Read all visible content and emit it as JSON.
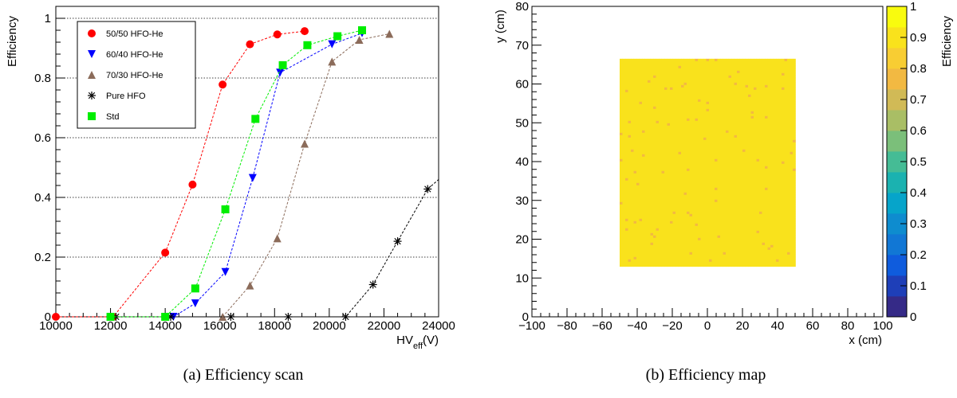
{
  "chart_data": [
    {
      "type": "scatter",
      "title": "",
      "xlabel": "HV",
      "xlabel_sub": "eff",
      "xlabel_unit": "(V)",
      "ylabel": "Efficiency",
      "xlim": [
        10000,
        24000
      ],
      "ylim": [
        0,
        1.05
      ],
      "x_ticks": [
        10000,
        12000,
        14000,
        16000,
        18000,
        20000,
        22000,
        24000
      ],
      "y_ticks": [
        0,
        0.2,
        0.4,
        0.6,
        0.8,
        1
      ],
      "y_tick_labels": [
        "0",
        "0.2",
        "0.4",
        "0.6",
        "0.8",
        "1"
      ],
      "grid": "horizontal dotted",
      "legend_position": "top-left",
      "series": [
        {
          "name": "50/50 HFO-He",
          "color": "#ff0000",
          "marker": "circle",
          "x": [
            10000,
            12100,
            14000,
            15000,
            16100,
            17100,
            18100,
            19100
          ],
          "y": [
            0.0,
            0.0,
            0.215,
            0.443,
            0.778,
            0.913,
            0.946,
            0.957
          ]
        },
        {
          "name": "60/40 HFO-He",
          "color": "#0000ff",
          "marker": "triangle-down",
          "x": [
            14300,
            15100,
            16200,
            17200,
            18200,
            20100,
            21200
          ],
          "y": [
            0.0,
            0.045,
            0.15,
            0.465,
            0.818,
            0.913,
            0.95
          ]
        },
        {
          "name": "70/30 HFO-He",
          "color": "#8b6b5a",
          "marker": "triangle-up",
          "x": [
            16100,
            17100,
            18100,
            19100,
            20100,
            21100,
            22200
          ],
          "y": [
            0.0,
            0.105,
            0.263,
            0.58,
            0.855,
            0.928,
            0.948
          ]
        },
        {
          "name": "Pure HFO",
          "color": "#000000",
          "marker": "asterisk",
          "x": [
            12200,
            14200,
            16400,
            18500,
            20600,
            21600,
            22500,
            23600,
            24000
          ],
          "y": [
            0.0,
            0.0,
            0.0,
            0.0,
            0.0,
            0.108,
            0.253,
            0.428,
            0.46
          ]
        },
        {
          "name": "Std",
          "color": "#00ee00",
          "marker": "square",
          "x": [
            12000,
            14000,
            15100,
            16200,
            17300,
            18300,
            19200,
            20300,
            21200
          ],
          "y": [
            0.0,
            0.0,
            0.095,
            0.36,
            0.663,
            0.843,
            0.91,
            0.94,
            0.96
          ]
        }
      ]
    },
    {
      "type": "heatmap",
      "title": "",
      "xlabel": "x (cm)",
      "ylabel": "y (cm)",
      "zlabel": "Efficiency",
      "xlim": [
        -100,
        100
      ],
      "ylim": [
        0,
        80
      ],
      "zlim": [
        0,
        1
      ],
      "x_ticks": [
        -100,
        -80,
        -60,
        -40,
        -20,
        0,
        20,
        40,
        60,
        80,
        100
      ],
      "y_ticks": [
        0,
        10,
        20,
        30,
        40,
        50,
        60,
        70,
        80
      ],
      "z_ticks": [
        0,
        0.1,
        0.2,
        0.3,
        0.4,
        0.5,
        0.6,
        0.7,
        0.8,
        0.9,
        1
      ],
      "z_tick_labels": [
        "0",
        "0.1",
        "0.2",
        "0.3",
        "0.4",
        "0.5",
        "0.6",
        "0.7",
        "0.8",
        "0.9",
        "1"
      ],
      "active_region": {
        "x": [
          -50,
          49
        ],
        "y": [
          13.5,
          66.5
        ]
      },
      "typical_efficiency": 0.9,
      "efficiency_range_observed": [
        0.75,
        0.97
      ],
      "colormap": [
        "#352a87",
        "#1e3fb8",
        "#0f5cdd",
        "#1177d5",
        "#0e8ccf",
        "#06a4ca",
        "#1bb2b0",
        "#45bc95",
        "#7bbf7a",
        "#a9be65",
        "#d1ba56",
        "#f2b942",
        "#f8cd33",
        "#f9e21c",
        "#f9fb0e"
      ]
    }
  ],
  "captions": {
    "a": "(a) Efficiency scan",
    "b": "(b) Efficiency map"
  }
}
